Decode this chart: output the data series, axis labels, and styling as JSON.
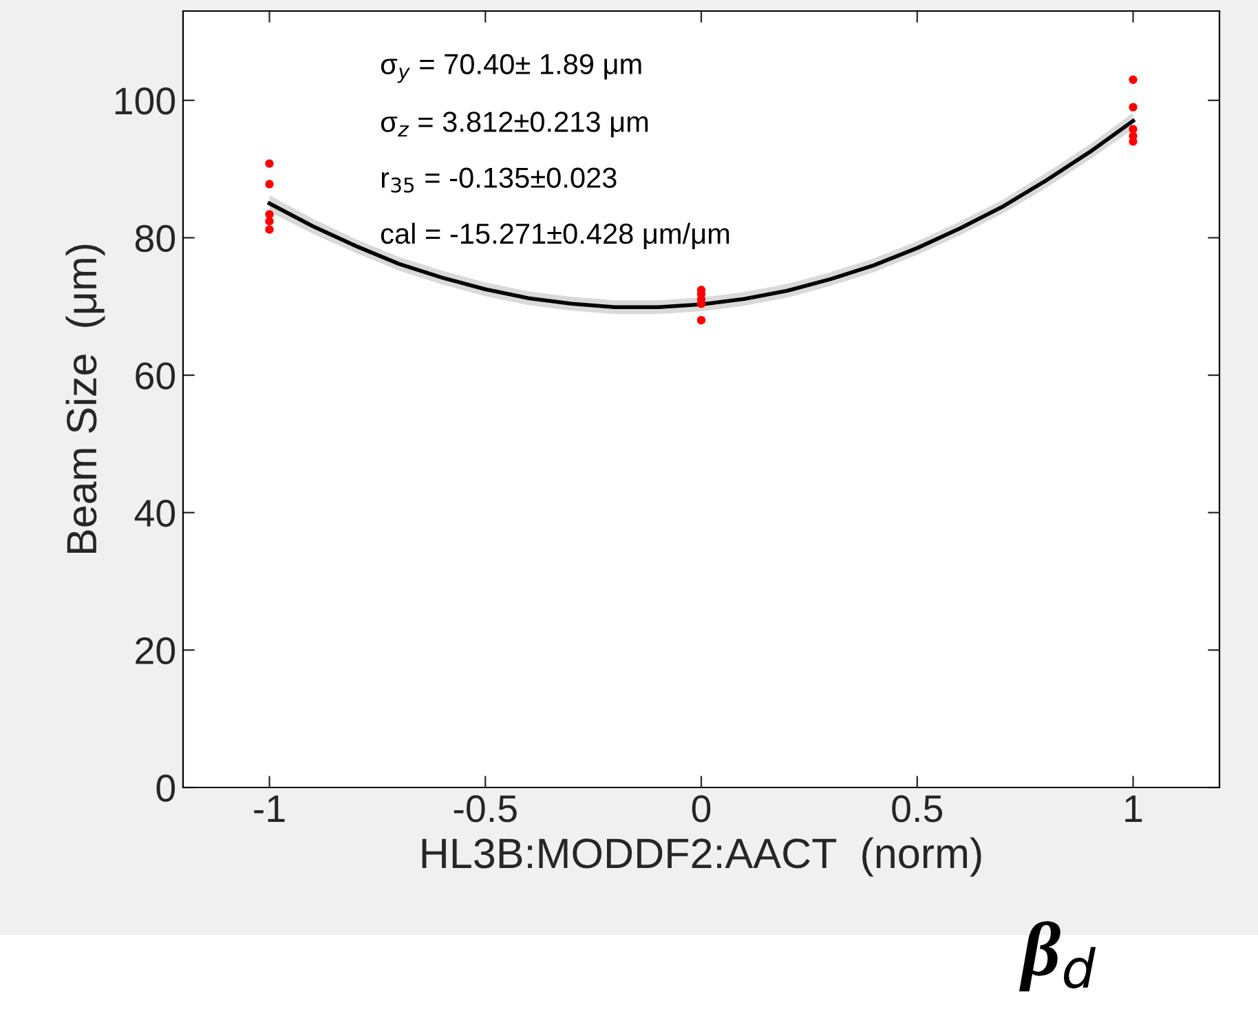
{
  "chart_data": {
    "type": "scatter",
    "xlabel": "HL3B:MODDF2:AACT  (norm)",
    "ylabel": "Beam Size  (μm)",
    "xlim": [
      -1.2,
      1.2
    ],
    "xticks": [
      -1,
      -0.5,
      0,
      0.5,
      1
    ],
    "ylim": [
      0,
      113
    ],
    "yticks": [
      0,
      20,
      40,
      60,
      80,
      100
    ],
    "grid": false,
    "legend": false,
    "series": [
      {
        "color": "#ff0000",
        "marker": "circle",
        "x": [
          -1,
          -1,
          -1,
          -1,
          -1,
          0,
          0,
          0,
          0,
          0,
          1,
          1,
          1,
          1,
          1
        ],
        "values": [
          90.8,
          87.8,
          83.4,
          82.4,
          81.2,
          72.4,
          71.8,
          71.0,
          70.4,
          68.0,
          103,
          99,
          95.8,
          94.8,
          94.0
        ]
      },
      {
        "type": "line",
        "color": "#000000",
        "marker": "none",
        "line_style": "solid",
        "x": [
          -1,
          -0.9,
          -0.8,
          -0.7,
          -0.6,
          -0.5,
          -0.4,
          -0.3,
          -0.2,
          -0.1,
          0,
          0.1,
          0.2,
          0.3,
          0.4,
          0.5,
          0.6,
          0.7,
          0.8,
          0.9,
          1
        ],
        "values": [
          85.0,
          81.7,
          78.8,
          76.2,
          74.2,
          72.5,
          71.2,
          70.4,
          69.9,
          69.9,
          70.3,
          71.1,
          72.3,
          74.0,
          76.0,
          78.5,
          81.4,
          84.6,
          88.4,
          92.5,
          97.0
        ],
        "lower": [
          83.8,
          80.6,
          77.8,
          75.2,
          73.2,
          71.5,
          70.2,
          69.4,
          68.9,
          68.9,
          69.3,
          70.1,
          71.3,
          73.0,
          75.0,
          77.5,
          80.4,
          83.6,
          87.3,
          91.4,
          95.8
        ],
        "upper": [
          86.2,
          82.8,
          79.8,
          77.2,
          75.2,
          73.5,
          72.2,
          71.4,
          70.9,
          70.9,
          71.3,
          72.1,
          73.3,
          75.0,
          77.0,
          79.5,
          82.4,
          85.6,
          89.5,
          93.6,
          98.2
        ]
      }
    ],
    "annotations": [
      "σ$_{y}$ = 70.40± 1.89 μm",
      "σ$_{z}$ = 3.812±0.213 μm",
      "r$_{35}$ = -0.135±0.023",
      "cal = -15.271±0.428 μm/μm",
      "β$_{d}$"
    ]
  }
}
